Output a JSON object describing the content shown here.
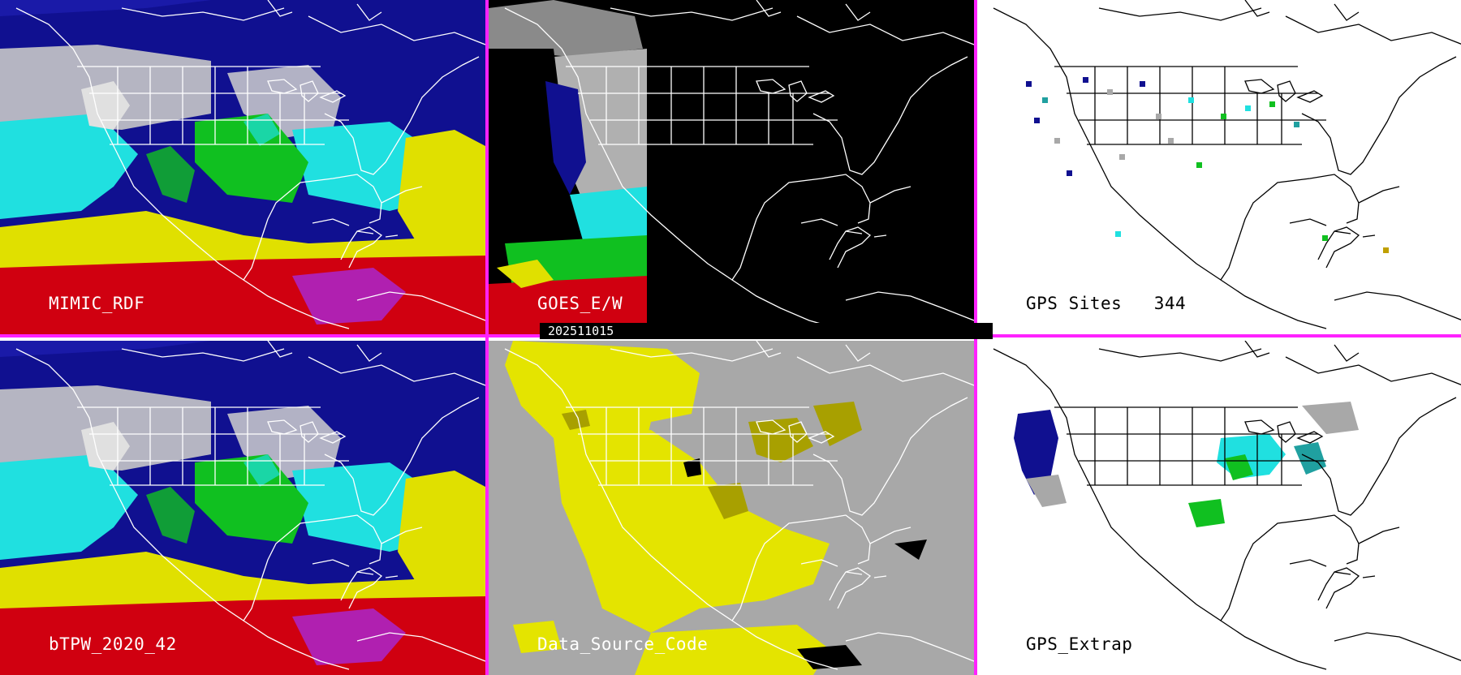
{
  "panels": [
    {
      "id": "mimic",
      "label": "MIMIC_RDF"
    },
    {
      "id": "goes",
      "label": "GOES_E/W"
    },
    {
      "id": "gps_sites",
      "label": "GPS Sites",
      "count": "344"
    },
    {
      "id": "btpw",
      "label": "bTPW_2020_42"
    },
    {
      "id": "source",
      "label": "Data_Source_Code"
    },
    {
      "id": "gps_extrap",
      "label": "GPS_Extrap"
    }
  ],
  "timestamp": "202511015",
  "colors": {
    "separator": "#ff22ff",
    "ocean_dark": "#101090",
    "tpw_cyan": "#20e0e0",
    "tpw_green": "#10c020",
    "tpw_yellow": "#e0e000",
    "tpw_red": "#d00010",
    "tpw_magenta": "#b020b0",
    "land_gray": "#a8a8a8",
    "source_yellow": "#e4e400",
    "source_olive": "#a8a000"
  }
}
